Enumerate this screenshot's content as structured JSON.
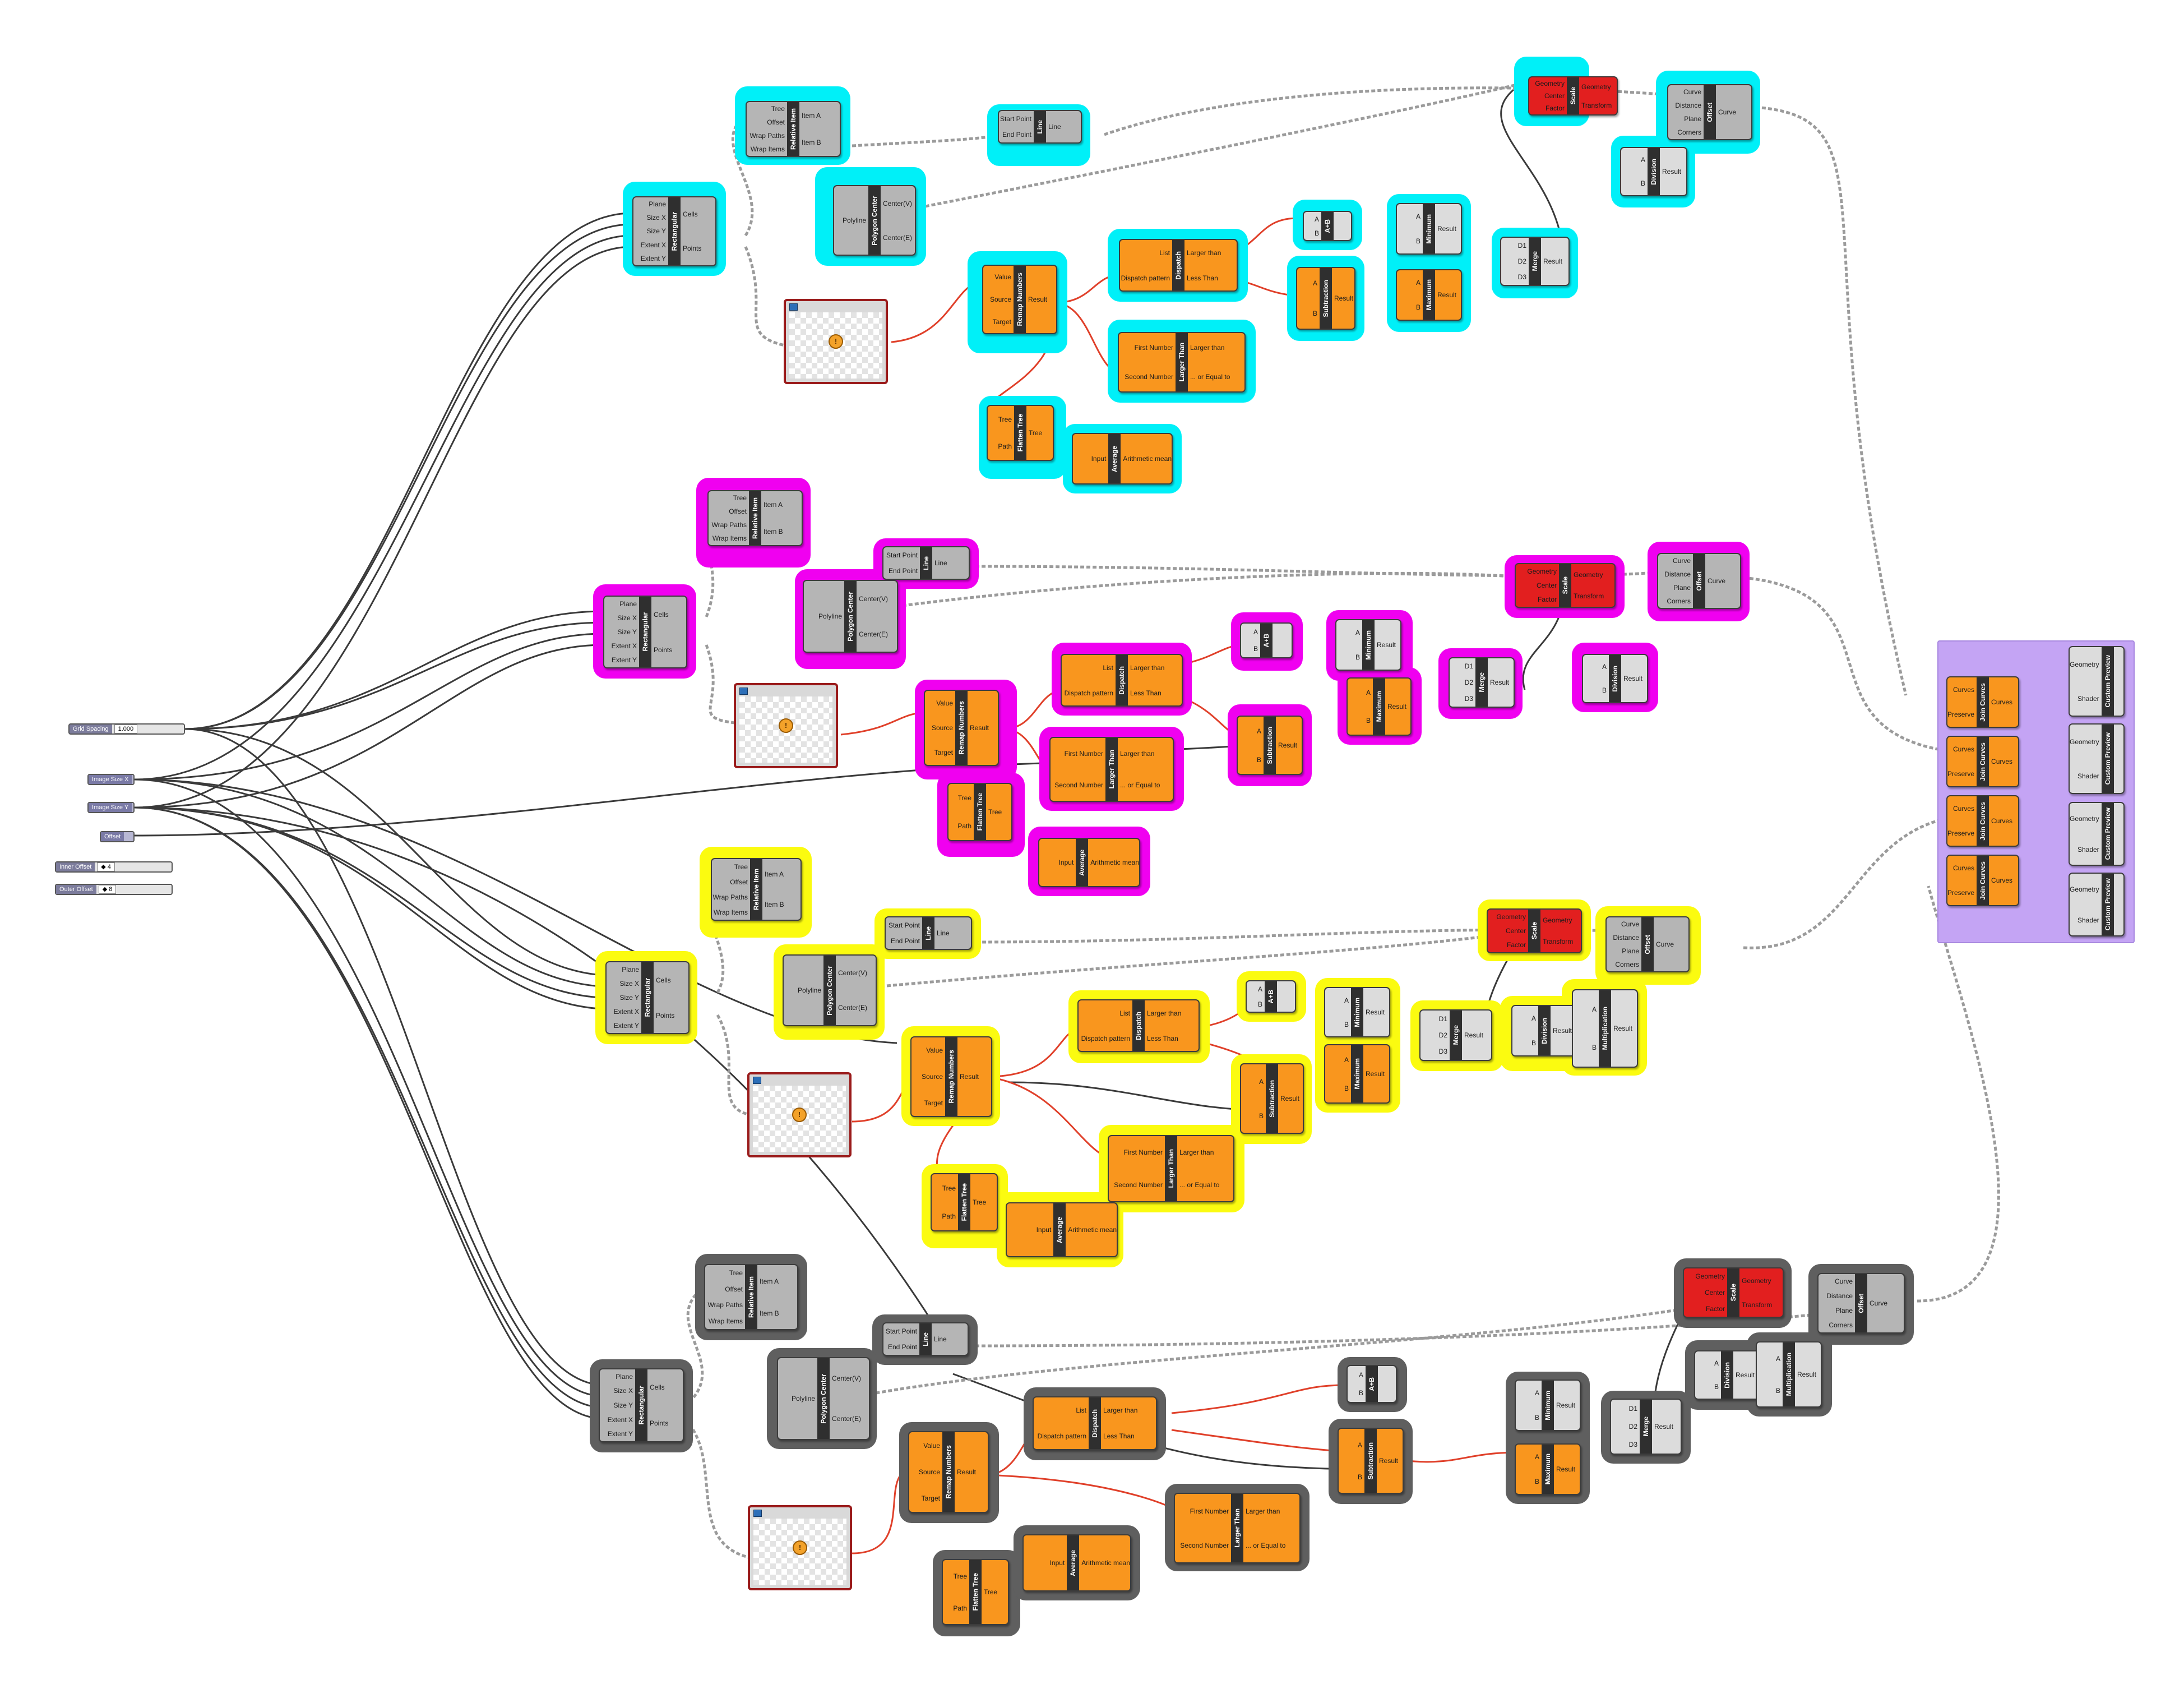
{
  "controls": {
    "grid_spacing": {
      "label": "Grid Spacing",
      "value": "1.000"
    },
    "image_size_x": {
      "label": "Image Size X"
    },
    "image_size_y": {
      "label": "Image Size Y"
    },
    "offset": {
      "label": "Offset"
    },
    "inner_offset": {
      "label": "Inner Offset",
      "value": "◆ 4"
    },
    "outer_offset": {
      "label": "Outer Offset",
      "value": "◆ 8"
    }
  },
  "labels": {
    "tree": "Tree",
    "offset": "Offset",
    "wrap_paths": "Wrap Paths",
    "wrap_items": "Wrap Items",
    "item_a": "Item A",
    "item_b": "Item B",
    "relative_item": "Relative Item",
    "start_point": "Start Point",
    "end_point": "End Point",
    "line": "Line",
    "plane": "Plane",
    "size_x": "Size X",
    "size_y": "Size Y",
    "extent_x": "Extent X",
    "extent_y": "Extent Y",
    "cells": "Cells",
    "points": "Points",
    "rectangular": "Rectangular",
    "polyline": "Polyline",
    "center_v": "Center(V)",
    "center_e": "Center(E)",
    "polygon_center": "Polygon Center",
    "value": "Value",
    "source": "Source",
    "target": "Target",
    "result": "Result",
    "remap_numbers": "Remap Numbers",
    "list": "List",
    "dispatch_pattern": "Dispatch pattern",
    "larger_than": "Larger than",
    "less_than": "Less Than",
    "dispatch": "Dispatch",
    "first_number": "First Number",
    "second_number": "Second Number",
    "or_equal_to": "... or Equal to",
    "larger_than_comp": "Larger Than",
    "path": "Path",
    "flatten_tree": "Flatten Tree",
    "input": "Input",
    "arithmetic_mean": "Arithmetic mean",
    "average": "Average",
    "a": "A",
    "b": "B",
    "a_plus_b": "A+B",
    "subtraction": "Subtraction",
    "minimum": "Minimum",
    "maximum": "Maximum",
    "d1": "D1",
    "d2": "D2",
    "d3": "D3",
    "merge": "Merge",
    "division": "Division",
    "multiplication": "Multiplication",
    "geometry": "Geometry",
    "center": "Center",
    "factor": "Factor",
    "transform": "Transform",
    "scale": "Scale",
    "curve": "Curve",
    "distance": "Distance",
    "corners": "Corners",
    "offset_comp": "Offset",
    "curves": "Curves",
    "preserve": "Preserve",
    "join_curves": "Join Curves",
    "shader": "Shader",
    "custom_preview": "Custom Preview"
  },
  "colors": {
    "cyan": "#00f0f8",
    "magenta": "#f000f0",
    "yellow": "#fbfb10",
    "gray": "#5f5f5f",
    "purple": "#c4a4f4",
    "orange_node": "#f9961e",
    "red_node": "#e21f1f",
    "wire_red": "#e0402a",
    "wire_dark": "#3a3a3a"
  }
}
